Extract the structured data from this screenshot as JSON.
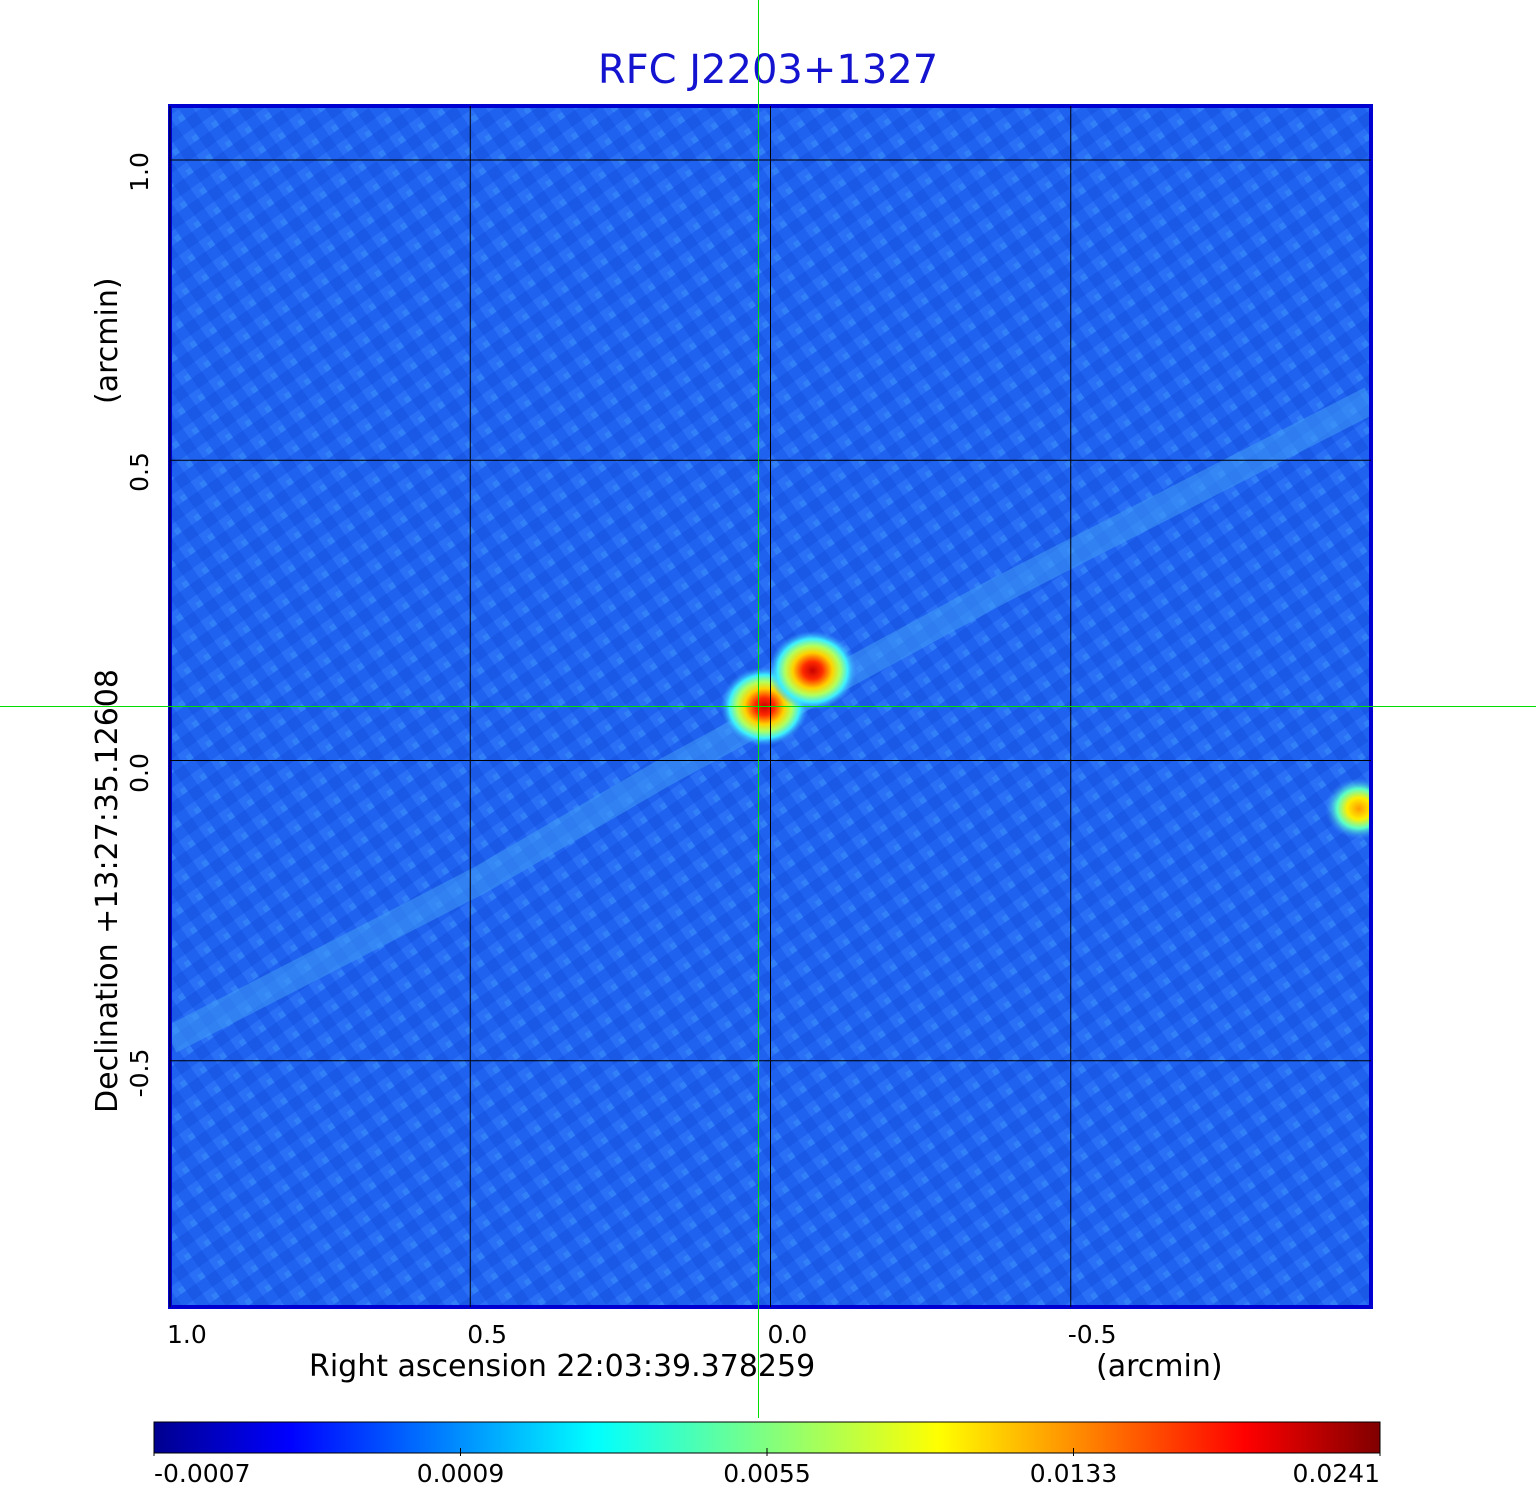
{
  "chart_data": {
    "type": "heatmap",
    "title": "RFC J2203+1327",
    "xaxis": {
      "label": "Right ascension  22:03:39.378259",
      "unit": "(arcmin)",
      "ticks": [
        "1.0",
        "0.5",
        "0.0",
        "-0.5"
      ],
      "tick_values": [
        1.0,
        0.5,
        0.0,
        -0.5
      ],
      "range": [
        1.0,
        -1.0
      ],
      "reversed": true
    },
    "yaxis": {
      "label": "Declination  +13:27:35.12608",
      "unit": "(arcmin)",
      "ticks": [
        "1.0",
        "0.5",
        "0.0",
        "-0.5"
      ],
      "tick_values": [
        1.0,
        0.5,
        0.0,
        -0.5
      ],
      "range": [
        -0.91,
        1.09
      ]
    },
    "grid": true,
    "crosshair": {
      "x": 0.02,
      "y": 0.09,
      "color": "#00dd00"
    },
    "colormap": "jet",
    "colorbar": {
      "ticks": [
        "-0.0007",
        "0.0009",
        "0.0055",
        "0.0133",
        "0.0241"
      ],
      "tick_values": [
        -0.0007,
        0.0009,
        0.0055,
        0.0133,
        0.0241
      ],
      "placement": "bottom"
    },
    "sources": [
      {
        "x": 0.01,
        "y": 0.09,
        "peak": 0.022
      },
      {
        "x": -0.07,
        "y": 0.15,
        "peak": 0.024
      },
      {
        "x": -0.98,
        "y": -0.08,
        "peak": 0.012
      }
    ]
  }
}
